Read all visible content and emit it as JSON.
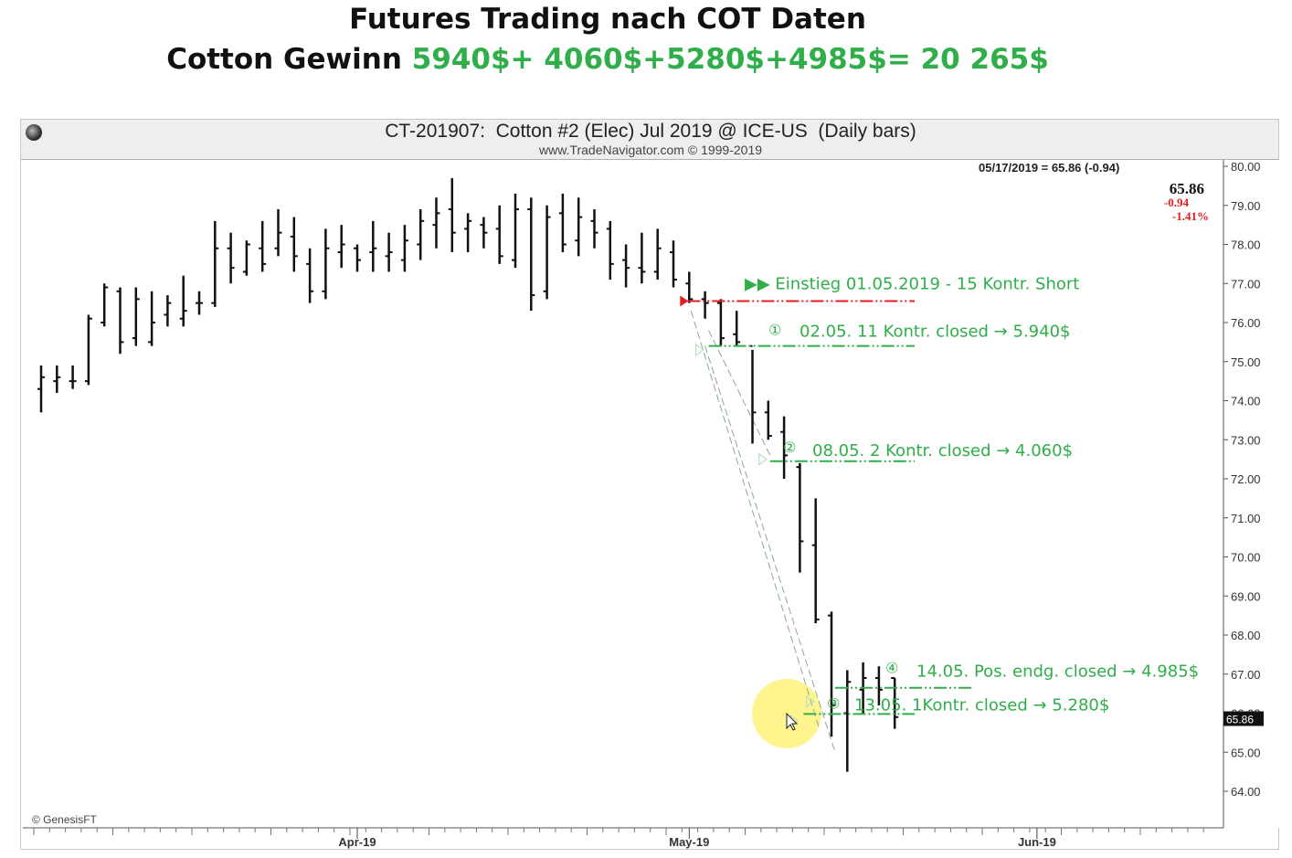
{
  "headline": {
    "line1": "Futures Trading nach COT Daten",
    "line2_prefix": "Cotton Gewinn ",
    "line2_green": "5940$+ 4060$+5280$+4985$= 20 265$"
  },
  "chart_data": {
    "type": "ohlc",
    "title": "CT-201907:  Cotton #2 (Elec) Jul 2019 @ ICE-US  (Daily bars)",
    "subtitle": "www.TradeNavigator.com © 1999-2019",
    "watermark": "© GenesisFT",
    "info_line": "05/17/2019 = 65.86 (-0.94)",
    "last_price": "65.86",
    "change": "-0.94",
    "change_pct": "-1.41%",
    "last_price_tag": "65.86",
    "ylim": [
      63.6,
      80.2
    ],
    "y_ticks": [
      "80.00",
      "79.00",
      "78.00",
      "77.00",
      "76.00",
      "75.00",
      "74.00",
      "73.00",
      "72.00",
      "71.00",
      "70.00",
      "69.00",
      "68.00",
      "67.00",
      "66.00",
      "65.00",
      "64.00"
    ],
    "x_labels": [
      {
        "label": "Apr-19",
        "bar": 20
      },
      {
        "label": "May-19",
        "bar": 41
      },
      {
        "label": "Jun-19",
        "bar": 63
      }
    ],
    "bars": [
      {
        "o": 74.3,
        "h": 74.9,
        "l": 73.7,
        "c": 74.6
      },
      {
        "o": 74.5,
        "h": 74.9,
        "l": 74.2,
        "c": 74.6
      },
      {
        "o": 74.5,
        "h": 74.9,
        "l": 74.3,
        "c": 74.5
      },
      {
        "o": 74.5,
        "h": 76.2,
        "l": 74.4,
        "c": 76.1
      },
      {
        "o": 76.0,
        "h": 77.0,
        "l": 75.9,
        "c": 76.9
      },
      {
        "o": 76.8,
        "h": 76.9,
        "l": 75.2,
        "c": 75.5
      },
      {
        "o": 75.6,
        "h": 76.9,
        "l": 75.4,
        "c": 76.6
      },
      {
        "o": 75.5,
        "h": 76.8,
        "l": 75.4,
        "c": 76.0
      },
      {
        "o": 76.2,
        "h": 76.7,
        "l": 75.9,
        "c": 76.5
      },
      {
        "o": 76.1,
        "h": 77.2,
        "l": 75.9,
        "c": 76.3
      },
      {
        "o": 76.5,
        "h": 76.8,
        "l": 76.2,
        "c": 76.5
      },
      {
        "o": 76.5,
        "h": 78.6,
        "l": 76.4,
        "c": 77.9
      },
      {
        "o": 77.9,
        "h": 78.3,
        "l": 77.0,
        "c": 77.4
      },
      {
        "o": 77.3,
        "h": 78.1,
        "l": 77.2,
        "c": 78.0
      },
      {
        "o": 77.9,
        "h": 78.6,
        "l": 77.3,
        "c": 77.5
      },
      {
        "o": 77.9,
        "h": 78.9,
        "l": 77.7,
        "c": 78.3
      },
      {
        "o": 78.2,
        "h": 78.7,
        "l": 77.3,
        "c": 77.7
      },
      {
        "o": 77.5,
        "h": 77.9,
        "l": 76.5,
        "c": 76.8
      },
      {
        "o": 76.8,
        "h": 78.4,
        "l": 76.6,
        "c": 77.9
      },
      {
        "o": 77.8,
        "h": 78.5,
        "l": 77.4,
        "c": 78.0
      },
      {
        "o": 77.9,
        "h": 78.0,
        "l": 77.3,
        "c": 77.6
      },
      {
        "o": 77.8,
        "h": 78.6,
        "l": 77.3,
        "c": 77.9
      },
      {
        "o": 77.7,
        "h": 78.3,
        "l": 77.3,
        "c": 77.8
      },
      {
        "o": 77.6,
        "h": 78.5,
        "l": 77.3,
        "c": 78.1
      },
      {
        "o": 78.0,
        "h": 78.9,
        "l": 77.6,
        "c": 78.6
      },
      {
        "o": 78.5,
        "h": 79.2,
        "l": 77.9,
        "c": 78.8
      },
      {
        "o": 78.9,
        "h": 79.7,
        "l": 77.8,
        "c": 78.3
      },
      {
        "o": 78.4,
        "h": 78.8,
        "l": 77.8,
        "c": 78.6
      },
      {
        "o": 78.5,
        "h": 78.7,
        "l": 77.9,
        "c": 78.3
      },
      {
        "o": 78.4,
        "h": 79.0,
        "l": 77.5,
        "c": 77.7
      },
      {
        "o": 77.6,
        "h": 79.3,
        "l": 77.4,
        "c": 78.9
      },
      {
        "o": 78.9,
        "h": 79.2,
        "l": 76.3,
        "c": 76.7
      },
      {
        "o": 76.8,
        "h": 79.0,
        "l": 76.6,
        "c": 78.7
      },
      {
        "o": 78.8,
        "h": 79.3,
        "l": 77.8,
        "c": 78.0
      },
      {
        "o": 78.1,
        "h": 79.2,
        "l": 77.7,
        "c": 78.7
      },
      {
        "o": 78.6,
        "h": 78.9,
        "l": 77.9,
        "c": 78.3
      },
      {
        "o": 78.4,
        "h": 78.6,
        "l": 77.1,
        "c": 77.5
      },
      {
        "o": 77.6,
        "h": 78.0,
        "l": 76.9,
        "c": 77.4
      },
      {
        "o": 77.4,
        "h": 78.3,
        "l": 77.0,
        "c": 77.3
      },
      {
        "o": 77.3,
        "h": 78.4,
        "l": 77.1,
        "c": 77.9
      },
      {
        "o": 77.8,
        "h": 78.1,
        "l": 76.9,
        "c": 77.1
      },
      {
        "o": 77.0,
        "h": 77.3,
        "l": 76.5,
        "c": 76.6
      },
      {
        "o": 76.6,
        "h": 76.8,
        "l": 76.1,
        "c": 76.5
      },
      {
        "o": 76.5,
        "h": 76.6,
        "l": 75.4,
        "c": 75.6
      },
      {
        "o": 75.7,
        "h": 76.3,
        "l": 75.4,
        "c": 75.5
      },
      {
        "o": 75.4,
        "h": 75.3,
        "l": 72.9,
        "c": 73.7
      },
      {
        "o": 73.7,
        "h": 74.0,
        "l": 73.0,
        "c": 73.1
      },
      {
        "o": 73.2,
        "h": 73.6,
        "l": 72.0,
        "c": 72.6
      },
      {
        "o": 72.3,
        "h": 72.4,
        "l": 69.6,
        "c": 70.4
      },
      {
        "o": 70.3,
        "h": 71.5,
        "l": 68.3,
        "c": 68.4
      },
      {
        "o": 68.5,
        "h": 68.6,
        "l": 65.4,
        "c": 66.2
      },
      {
        "o": 66.0,
        "h": 67.1,
        "l": 64.5,
        "c": 66.8
      },
      {
        "o": 66.6,
        "h": 67.3,
        "l": 66.0,
        "c": 66.9
      },
      {
        "o": 66.9,
        "h": 67.2,
        "l": 66.2,
        "c": 66.6
      },
      {
        "o": 66.9,
        "h": 66.9,
        "l": 65.6,
        "c": 65.9
      }
    ],
    "annotations": {
      "entry": {
        "price": 76.55,
        "text": "▶▶  Einstieg 01.05.2019 - 15 Kontr. Short"
      },
      "exit1": {
        "price": 75.4,
        "marker": "①",
        "text": "02.05. 11 Kontr. closed → 5.940$"
      },
      "exit2": {
        "price": 72.45,
        "marker": "②",
        "text": "08.05. 2 Kontr. closed → 4.060$"
      },
      "exit4": {
        "price": 66.65,
        "marker": "④",
        "text": "14.05. Pos. endg. closed → 4.985$"
      },
      "exit3": {
        "price": 65.98,
        "marker": "③",
        "text": "13.05.  1Kontr. closed → 5.280$"
      }
    },
    "colors": {
      "bar": "#111111",
      "entry_line": "#e02020",
      "exit_line": "#2fae49",
      "annotation_text": "#2fae49",
      "change": "#e02020",
      "highlight": "#fff27a"
    }
  }
}
